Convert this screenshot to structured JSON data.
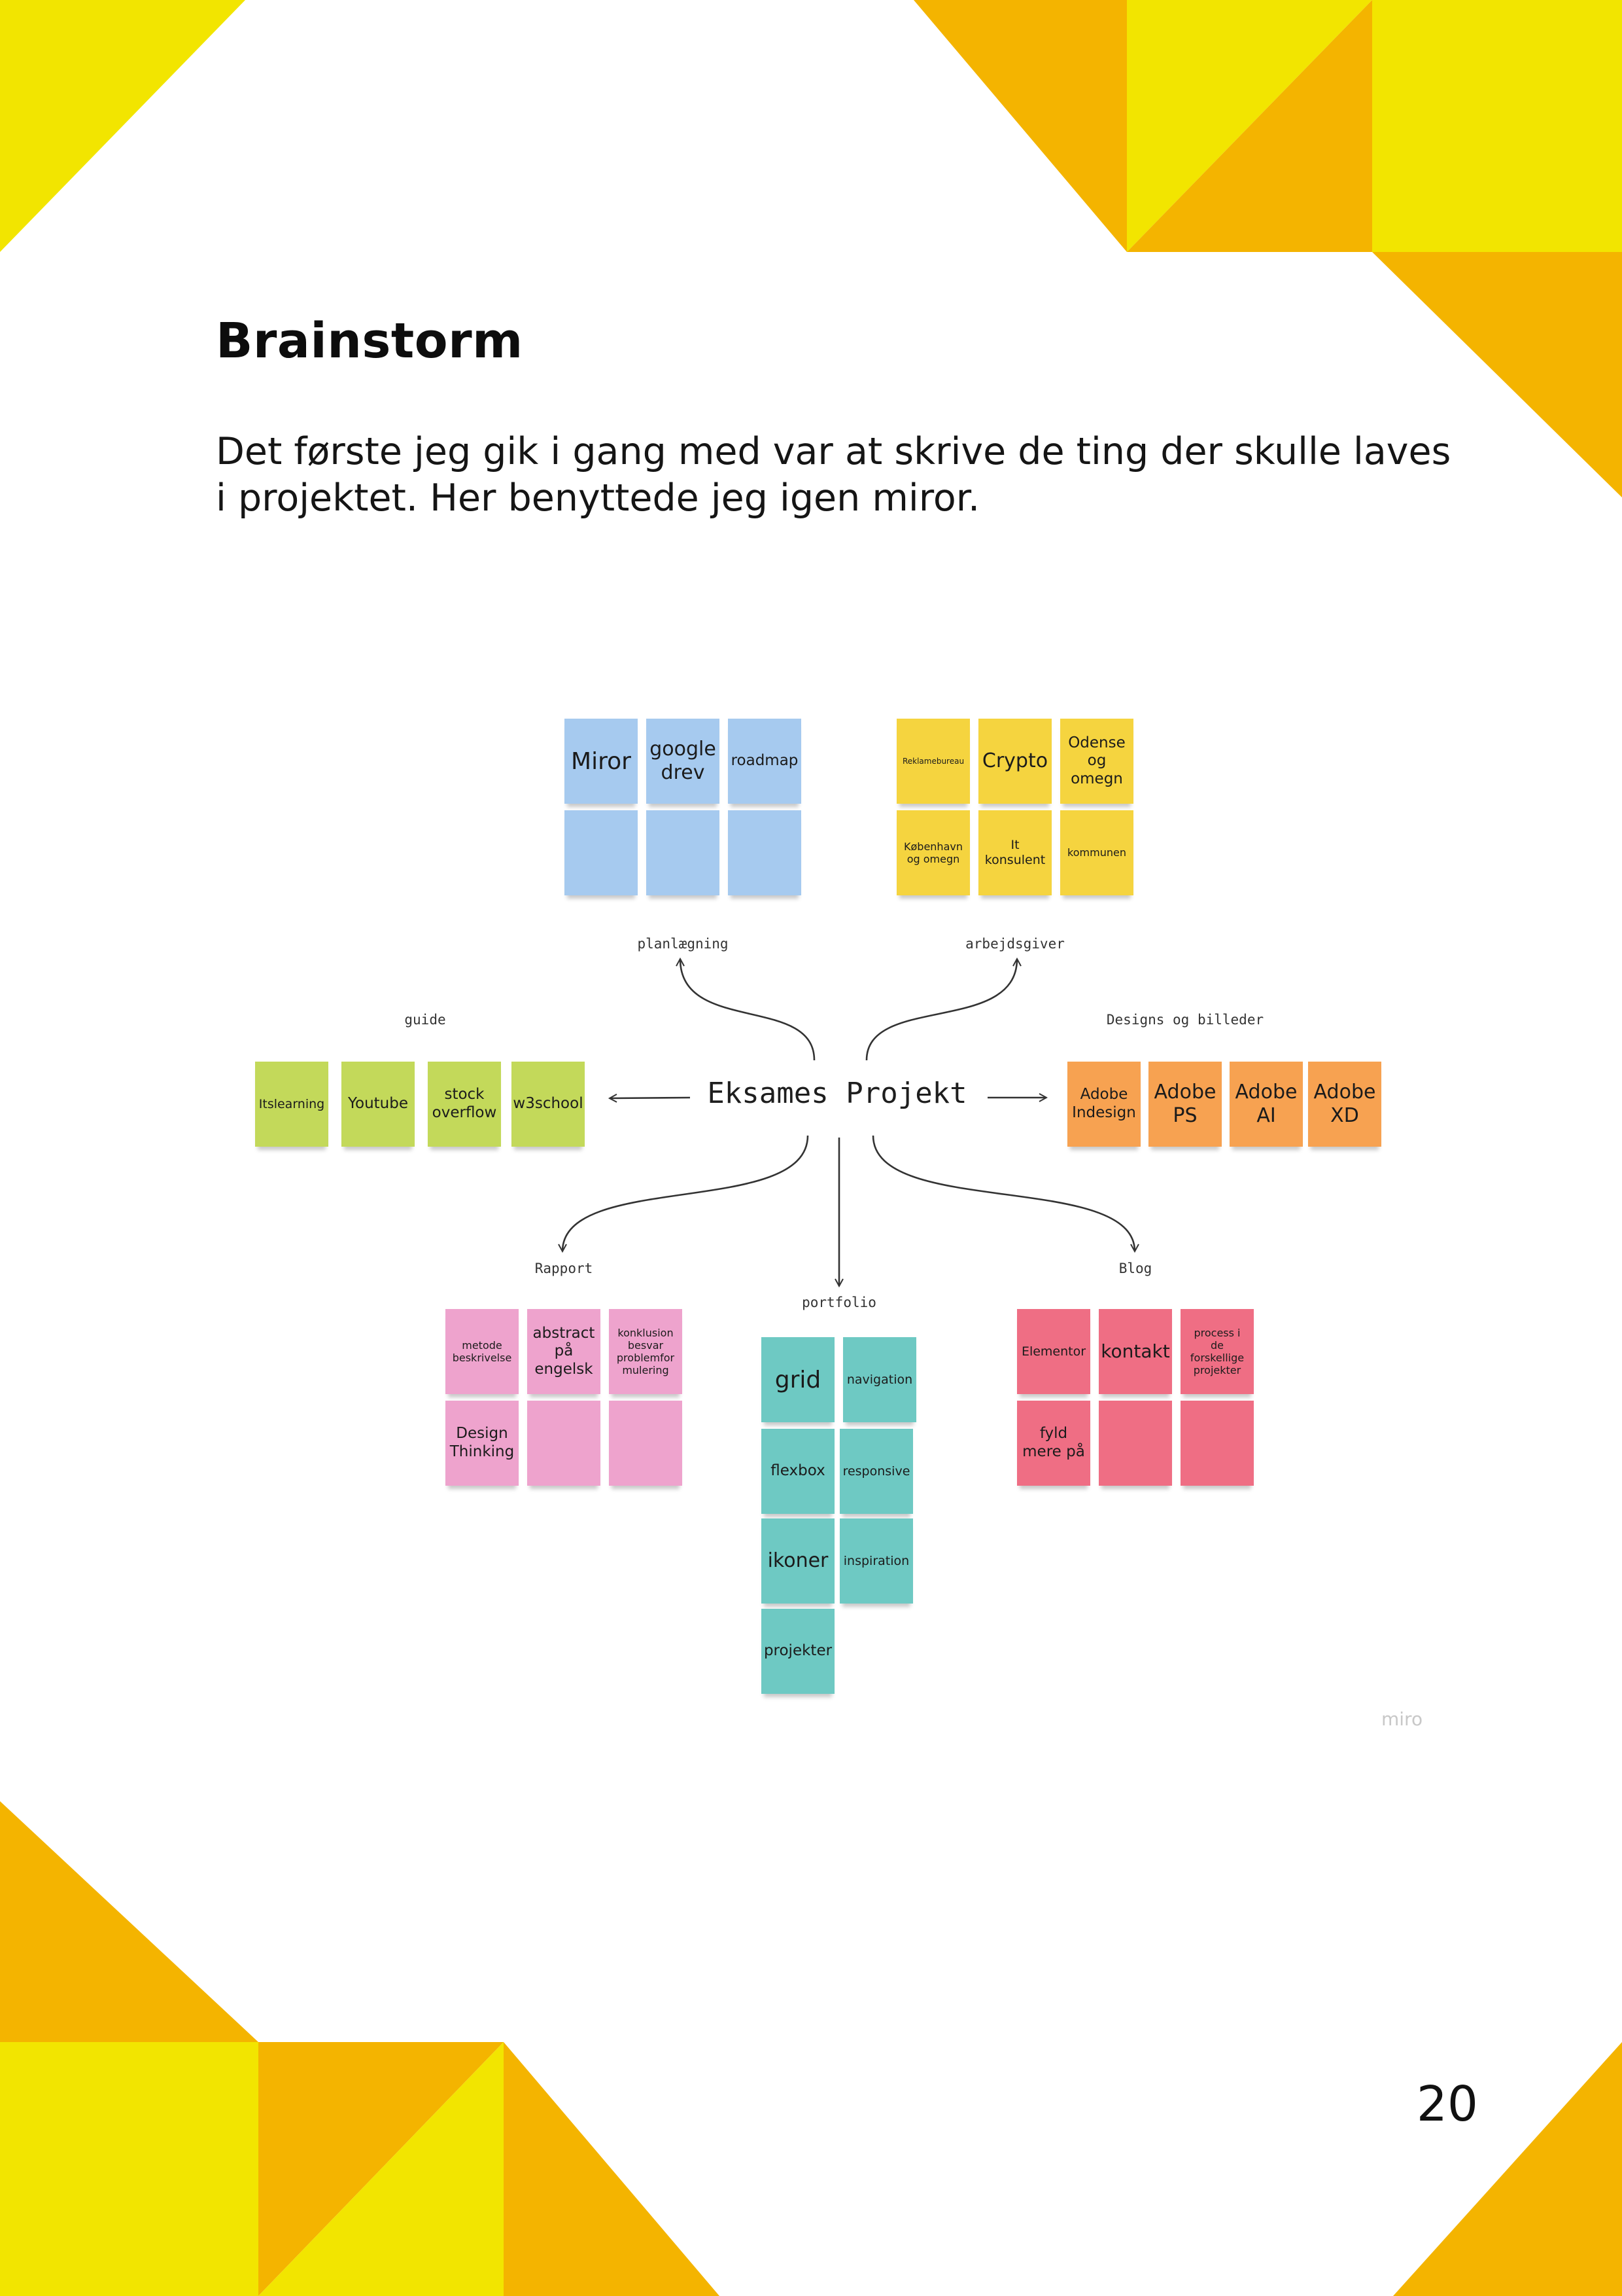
{
  "heading": "Brainstorm",
  "intro_text": "Det første jeg gik i gang med var at skrive de ting der skulle laves i projektet. Her benyttede jeg igen miror.",
  "page_number": "20",
  "colors": {
    "yellow": "#f2e500",
    "orange": "#f4b400"
  },
  "board": {
    "center": "Eksames Projekt",
    "watermark": "miro",
    "groups": {
      "planlaegning": {
        "label": "planlægning",
        "notes": [
          "Miror",
          "google\ndrev",
          "roadmap",
          "",
          "",
          ""
        ]
      },
      "arbejdsgiver": {
        "label": "arbejdsgiver",
        "notes": [
          "Reklamebureau",
          "Crypto",
          "Odense\nog\nomegn",
          "København\nog omegn",
          "It\nkonsulent",
          "kommunen"
        ]
      },
      "guide": {
        "label": "guide",
        "notes": [
          "Itslearning",
          "Youtube",
          "stock\noverflow",
          "w3school"
        ]
      },
      "designs": {
        "label": "Designs og billeder",
        "notes": [
          "Adobe\nIndesign",
          "Adobe\nPS",
          "Adobe\nAI",
          "Adobe\nXD"
        ]
      },
      "rapport": {
        "label": "Rapport",
        "notes": [
          "metode\nbeskrivelse",
          "abstract\npå\nengelsk",
          "konklusion\nbesvar\nproblemfor\nmulering",
          "Design\nThinking",
          "",
          ""
        ]
      },
      "portfolio": {
        "label": "portfolio",
        "notes": [
          "grid",
          "navigation",
          "flexbox",
          "responsive",
          "ikoner",
          "inspiration",
          "projekter"
        ]
      },
      "blog": {
        "label": "Blog",
        "notes": [
          "Elementor",
          "kontakt",
          "process i\nde\nforskellige\nprojekter",
          "fyld\nmere på",
          "",
          ""
        ]
      }
    }
  }
}
